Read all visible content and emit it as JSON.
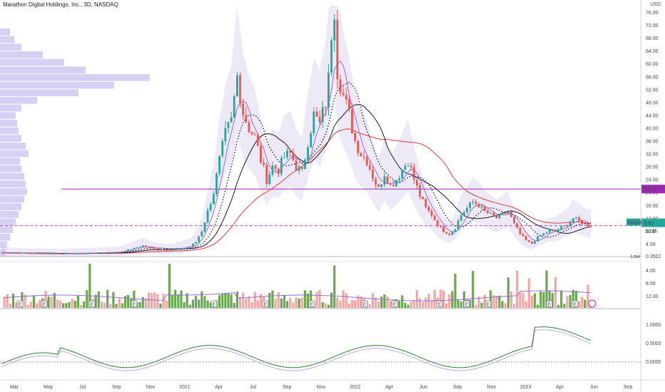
{
  "header": {
    "title": "Marathon Digital Holdings, Inc., 3D, NASDAQ",
    "currency": "USD"
  },
  "price_scale": {
    "ticks": [
      "76.00",
      "72.00",
      "68.00",
      "64.00",
      "60.00",
      "56.00",
      "52.00",
      "48.00",
      "44.00",
      "40.00",
      "36.00",
      "32.00",
      "28.00",
      "24.00",
      "20.00",
      "16.00",
      "12.00",
      "8.00",
      "4.00"
    ],
    "resistance_label": "21.00",
    "ticker_label": "MARA",
    "last_price": "9.62",
    "countdown": "2d 3h",
    "low_label": "Low",
    "low_value": "0.3522"
  },
  "volume_scale": {
    "ticks": [
      "4.00",
      "8.00",
      "12.00"
    ]
  },
  "osc_scale": {
    "ticks": [
      "1.0000",
      "0.5000",
      "0.0000"
    ]
  },
  "x_axis": {
    "labels": [
      "Mar",
      "May",
      "Jul",
      "Sep",
      "Nov",
      "2021",
      "Apr",
      "Jul",
      "Sep",
      "Nov",
      "2022",
      "Apr",
      "Jun",
      "Sep",
      "Nov",
      "2023",
      "Apr",
      "Jun",
      "Sep"
    ]
  },
  "markers": {
    "earnings": "E",
    "dividend": "D"
  },
  "colors": {
    "up": "#26a69a",
    "down": "#ef5350",
    "vol_up": "#6aa84f",
    "vol_down": "#f4a6a6",
    "ma_red": "#e53935",
    "ma_black": "#131722",
    "ma_purple": "#9c6ad6",
    "resistance": "#9c27b0",
    "vp_fill": "#c9bff0",
    "band": "#ede9f7"
  },
  "chart_data": {
    "type": "candlestick",
    "title": "Marathon Digital Holdings, Inc., 3D, NASDAQ",
    "ylim": [
      0,
      78
    ],
    "resistance": 21.0,
    "last": 9.62,
    "low": 0.3522,
    "price_path": [
      [
        0,
        1.2
      ],
      [
        10,
        1.0
      ],
      [
        20,
        0.9
      ],
      [
        30,
        1.1
      ],
      [
        40,
        1.4
      ],
      [
        45,
        2.6
      ],
      [
        48,
        3.4
      ],
      [
        52,
        2.2
      ],
      [
        56,
        2.0
      ],
      [
        60,
        2.4
      ],
      [
        64,
        3.2
      ],
      [
        66,
        4.6
      ],
      [
        68,
        8.0
      ],
      [
        70,
        14
      ],
      [
        72,
        20
      ],
      [
        74,
        30
      ],
      [
        76,
        38
      ],
      [
        78,
        42
      ],
      [
        80,
        56
      ],
      [
        82,
        45
      ],
      [
        84,
        40
      ],
      [
        86,
        37
      ],
      [
        88,
        30
      ],
      [
        90,
        24
      ],
      [
        92,
        28
      ],
      [
        94,
        27
      ],
      [
        96,
        31
      ],
      [
        98,
        32
      ],
      [
        100,
        28
      ],
      [
        102,
        26
      ],
      [
        104,
        36
      ],
      [
        106,
        44
      ],
      [
        108,
        41
      ],
      [
        110,
        48
      ],
      [
        111,
        55
      ],
      [
        112,
        70
      ],
      [
        113,
        78
      ],
      [
        114,
        58
      ],
      [
        116,
        50
      ],
      [
        118,
        44
      ],
      [
        120,
        36
      ],
      [
        122,
        32
      ],
      [
        124,
        30
      ],
      [
        126,
        25
      ],
      [
        128,
        21
      ],
      [
        130,
        26
      ],
      [
        132,
        22
      ],
      [
        134,
        24
      ],
      [
        136,
        27
      ],
      [
        138,
        30
      ],
      [
        140,
        24
      ],
      [
        142,
        19
      ],
      [
        144,
        15
      ],
      [
        146,
        13
      ],
      [
        148,
        10
      ],
      [
        150,
        8
      ],
      [
        152,
        7
      ],
      [
        154,
        9
      ],
      [
        156,
        13
      ],
      [
        158,
        15
      ],
      [
        160,
        17
      ],
      [
        162,
        16
      ],
      [
        164,
        14
      ],
      [
        166,
        13
      ],
      [
        168,
        12
      ],
      [
        170,
        13
      ],
      [
        172,
        14
      ],
      [
        174,
        10
      ],
      [
        176,
        7
      ],
      [
        178,
        5
      ],
      [
        180,
        4
      ],
      [
        182,
        6
      ],
      [
        184,
        7
      ],
      [
        186,
        8
      ],
      [
        188,
        8
      ],
      [
        190,
        9
      ],
      [
        192,
        10
      ],
      [
        194,
        12
      ],
      [
        196,
        11
      ],
      [
        198,
        10
      ],
      [
        200,
        9.62
      ]
    ],
    "volume_ticks": [
      "4.00",
      "8.00",
      "12.00"
    ],
    "oscillator_ticks": [
      "1.0000",
      "0.5000",
      "0.0000"
    ]
  }
}
